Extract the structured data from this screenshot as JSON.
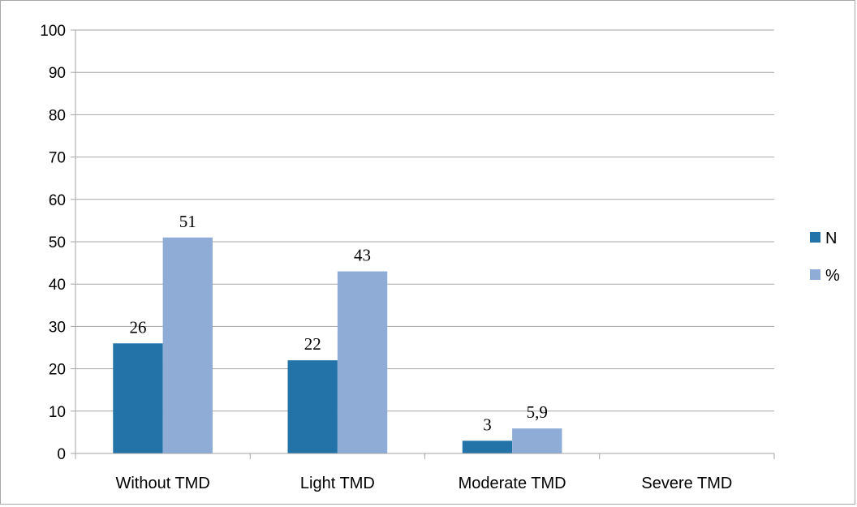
{
  "chart_data": {
    "type": "bar",
    "title": "",
    "xlabel": "",
    "ylabel": "",
    "categories": [
      "Without TMD",
      "Light TMD",
      "Moderate TMD",
      "Severe TMD"
    ],
    "ylim": [
      0,
      100
    ],
    "yticks": [
      0,
      10,
      20,
      30,
      40,
      50,
      60,
      70,
      80,
      90,
      100
    ],
    "grid": true,
    "legend_position": "right",
    "series": [
      {
        "name": "N",
        "color": "#2373a9",
        "values": [
          26,
          22,
          3,
          null
        ],
        "labels": [
          "26",
          "22",
          "3",
          ""
        ]
      },
      {
        "name": "%",
        "color": "#8eacd6",
        "values": [
          51,
          43,
          5.9,
          null
        ],
        "labels": [
          "51",
          "43",
          "5,9",
          ""
        ]
      }
    ]
  }
}
